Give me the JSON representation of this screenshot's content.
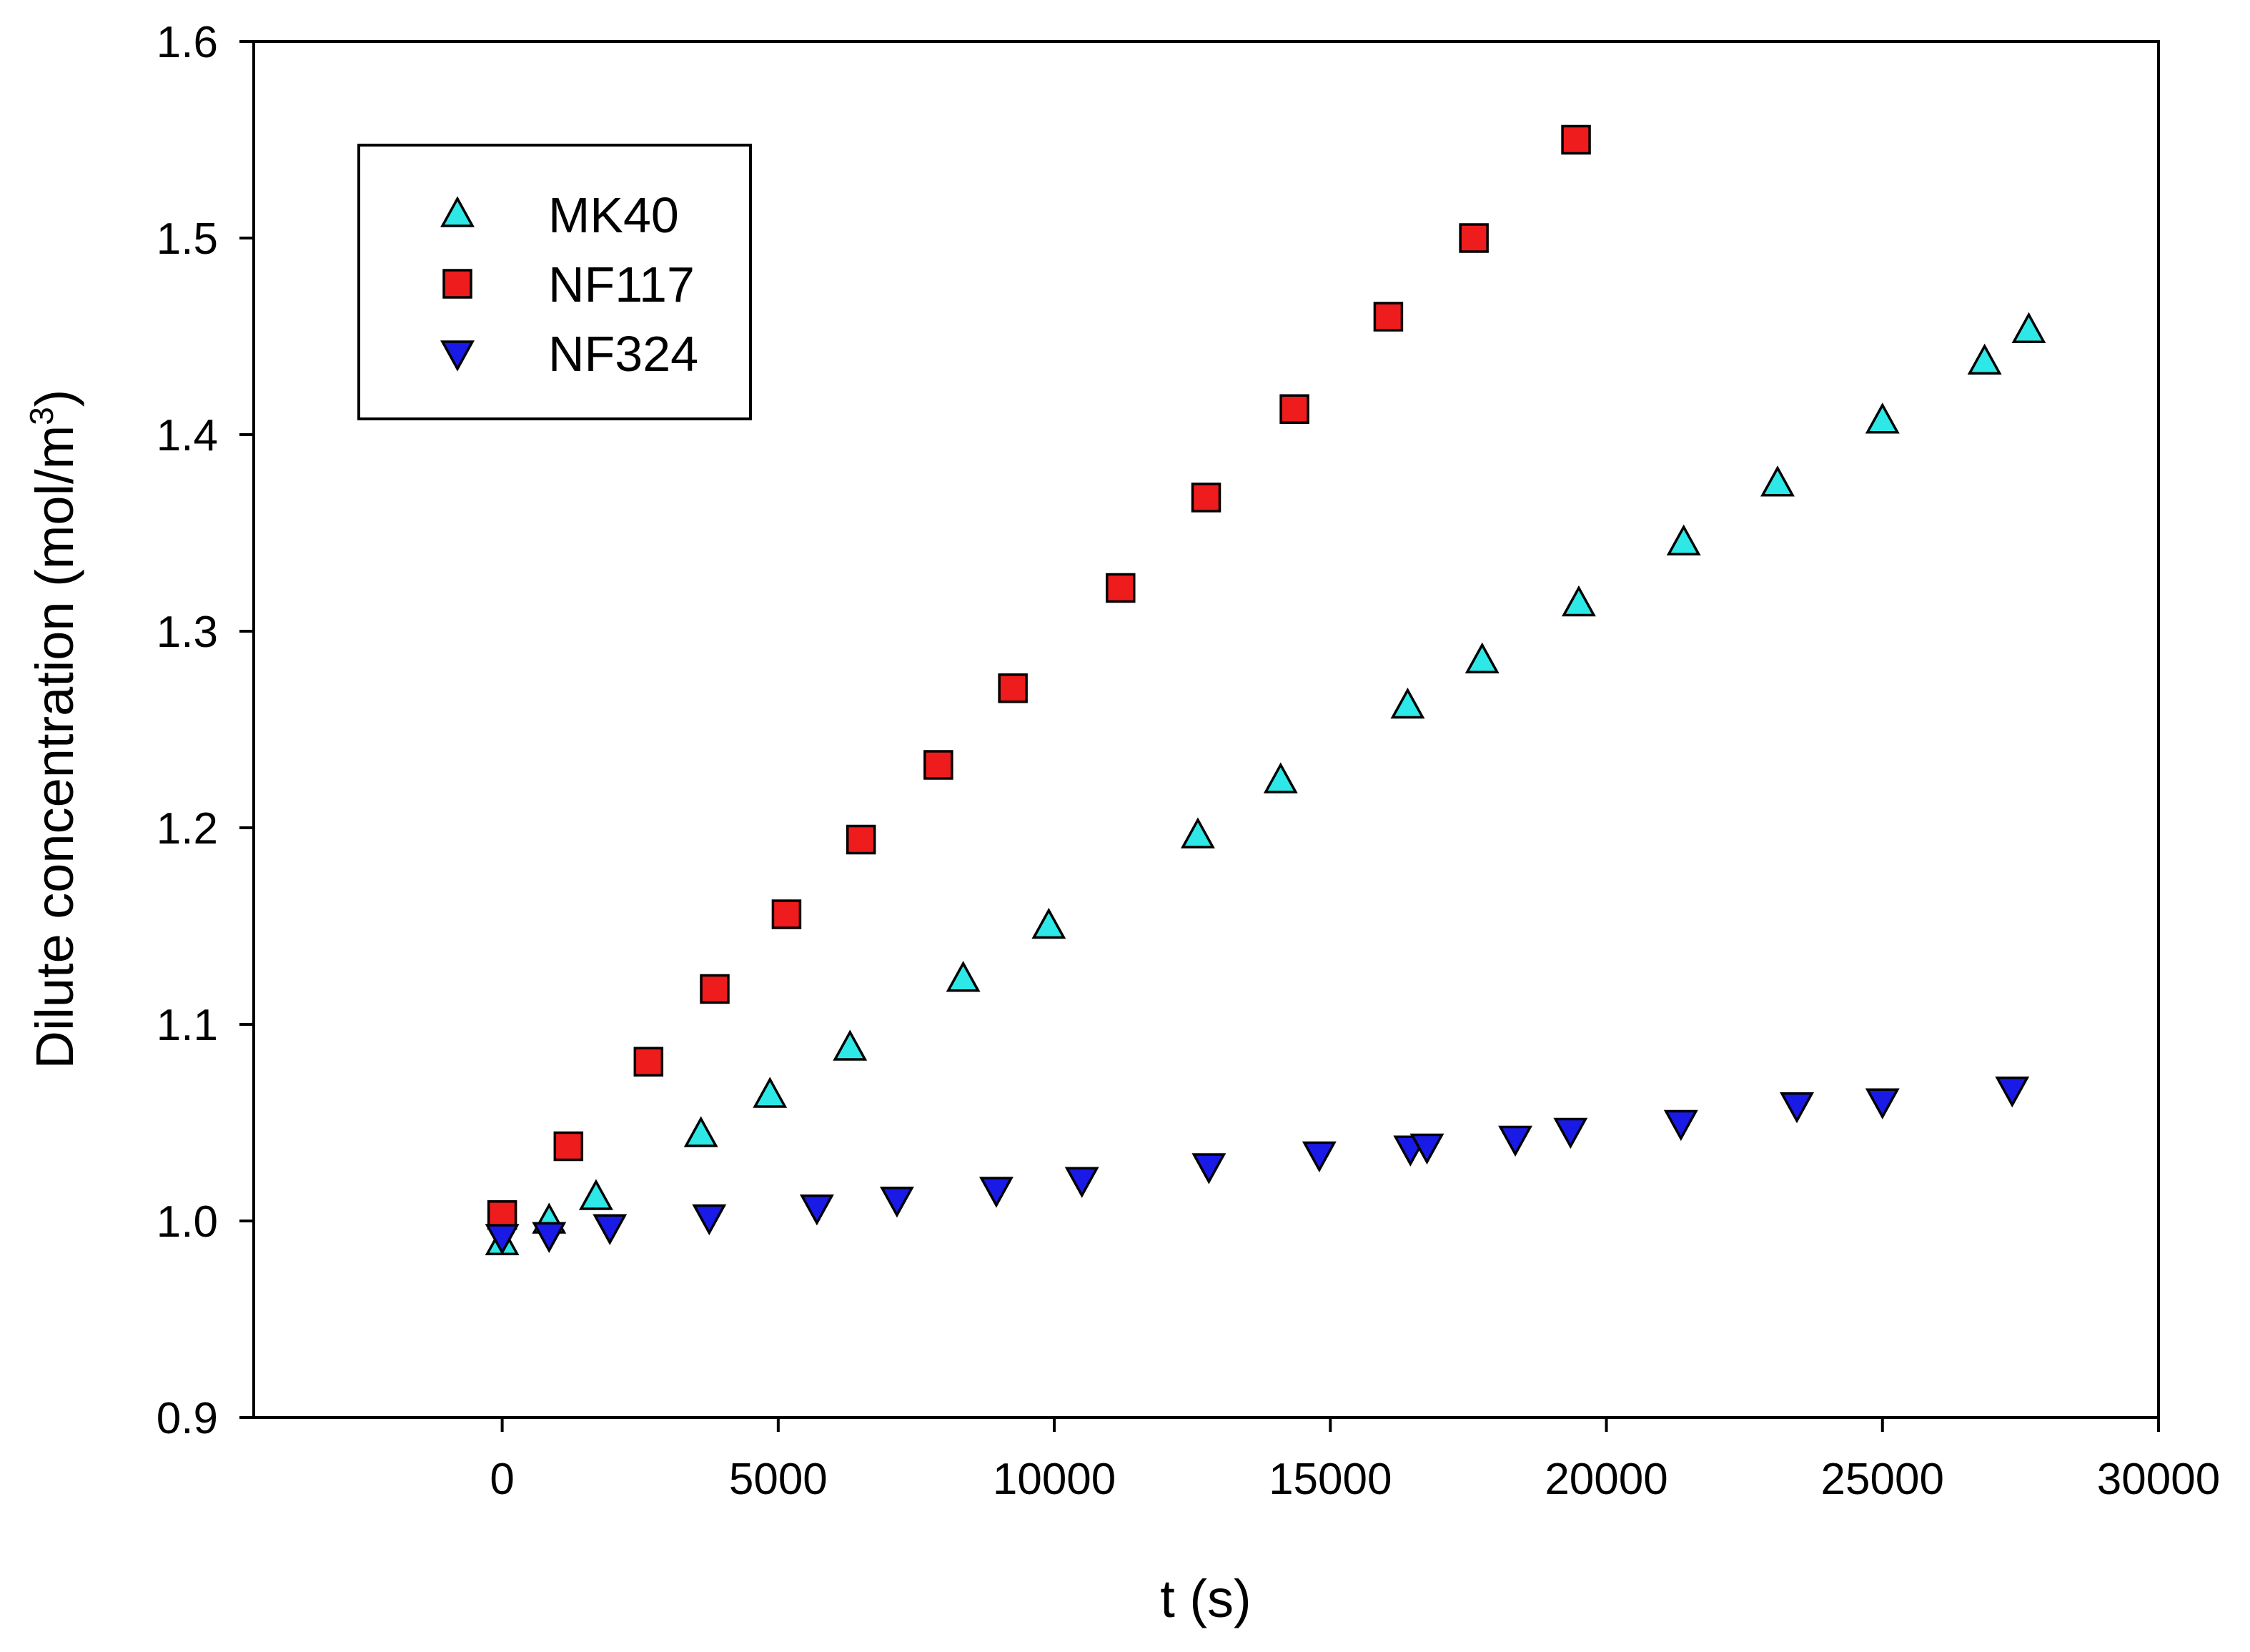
{
  "chart_data": {
    "type": "scatter",
    "title": "",
    "xlabel": "t (s)",
    "ylabel": {
      "text": "Dilute concentration (mol/m",
      "superscript": "3",
      "suffix": ")"
    },
    "xlim": [
      -4500,
      30000
    ],
    "ylim": [
      0.9,
      1.6
    ],
    "xticks": [
      0,
      5000,
      10000,
      15000,
      20000,
      25000,
      30000
    ],
    "xtick_labels": [
      "0",
      "5000",
      "10000",
      "15000",
      "20000",
      "25000",
      "30000"
    ],
    "yticks": [
      0.9,
      1.0,
      1.1,
      1.2,
      1.3,
      1.4,
      1.5,
      1.6
    ],
    "ytick_labels": [
      "0.9",
      "1.0",
      "1.1",
      "1.2",
      "1.3",
      "1.4",
      "1.5",
      "1.6"
    ],
    "grid": false,
    "legend_position": "top-left",
    "series": [
      {
        "name": "MK40",
        "marker": "triangle-up",
        "color": "#2ee8e8",
        "x": [
          0,
          850,
          1700,
          3600,
          4850,
          6300,
          8350,
          9900,
          12600,
          14100,
          16400,
          17750,
          19500,
          21400,
          23100,
          25000,
          26850,
          27650
        ],
        "y": [
          0.989,
          1.0,
          1.012,
          1.044,
          1.064,
          1.088,
          1.123,
          1.15,
          1.196,
          1.224,
          1.262,
          1.285,
          1.314,
          1.345,
          1.375,
          1.407,
          1.437,
          1.453
        ]
      },
      {
        "name": "NF117",
        "marker": "square",
        "color": "#ee1c1c",
        "x": [
          0,
          1200,
          2650,
          3850,
          5150,
          6500,
          7900,
          9250,
          11200,
          12750,
          14350,
          16050,
          17600,
          19450
        ],
        "y": [
          1.003,
          1.038,
          1.081,
          1.118,
          1.156,
          1.194,
          1.232,
          1.271,
          1.322,
          1.368,
          1.413,
          1.46,
          1.5,
          1.55
        ]
      },
      {
        "name": "NF324",
        "marker": "triangle-down",
        "color": "#1a1ae6",
        "x": [
          0,
          850,
          1950,
          3750,
          5700,
          7150,
          8950,
          10500,
          12800,
          14800,
          16450,
          16750,
          18350,
          19350,
          21350,
          23450,
          25000,
          27350
        ],
        "y": [
          0.992,
          0.993,
          0.997,
          1.002,
          1.007,
          1.011,
          1.016,
          1.021,
          1.028,
          1.034,
          1.037,
          1.038,
          1.042,
          1.046,
          1.05,
          1.059,
          1.061,
          1.067
        ]
      }
    ]
  }
}
